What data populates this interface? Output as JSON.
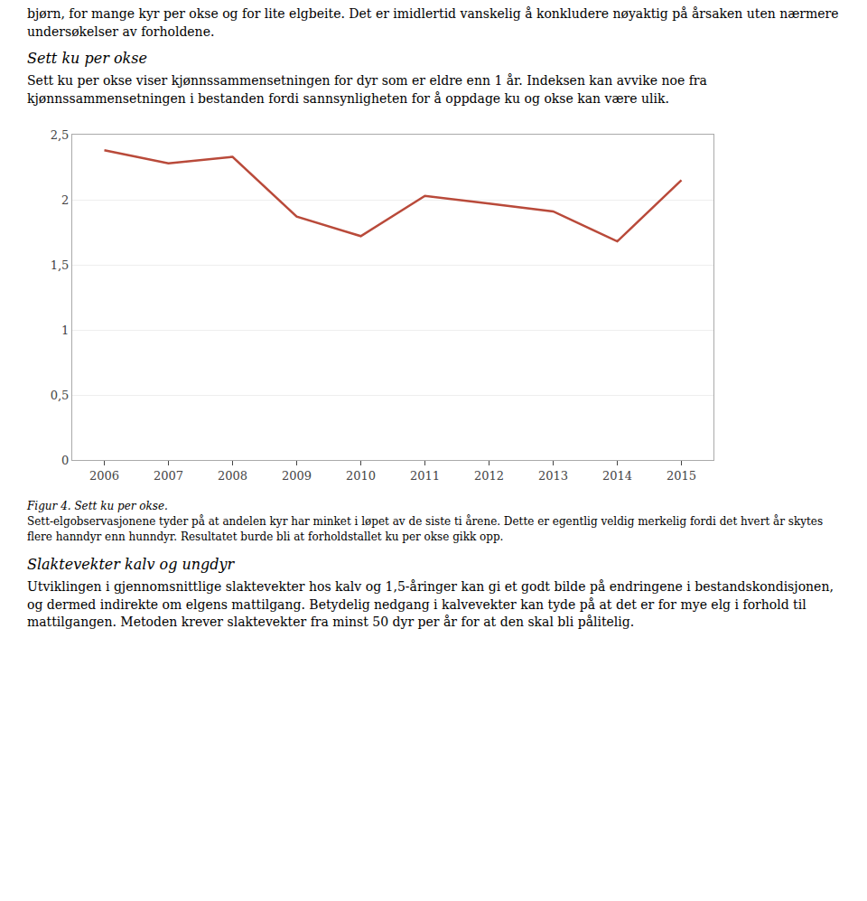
{
  "chart_data": {
    "type": "line",
    "x": [
      2006,
      2007,
      2008,
      2009,
      2010,
      2011,
      2012,
      2013,
      2014,
      2015
    ],
    "values": [
      2.38,
      2.28,
      2.33,
      1.87,
      1.72,
      2.03,
      1.97,
      1.91,
      1.68,
      2.15
    ],
    "color": "#b94a3a",
    "xlim": [
      2005.5,
      2015.5
    ],
    "xticks": [
      2006,
      2007,
      2008,
      2009,
      2010,
      2011,
      2012,
      2013,
      2014,
      2015
    ],
    "ylim": [
      0,
      2.5
    ],
    "yticks": [
      0,
      {
        "value": 0.5,
        "label": "0,5"
      },
      1,
      {
        "value": 1.5,
        "label": "1,5"
      },
      2,
      {
        "value": 2.5,
        "label": "2,5"
      }
    ],
    "grid": true,
    "annotations": [
      "bjørn, for mange kyr per okse og for lite elgbeite. Det er imidlertid vanskelig å konkludere nøyaktig på årsaken uten nærmere undersøkelser av forholdene.",
      "Sett ku per okse",
      "Sett ku per okse viser kjønnssammensetningen for dyr som er eldre enn 1 år. Indeksen kan avvike noe fra kjønnssammensetningen i bestanden fordi sannsynligheten for å oppdage ku og okse kan være ulik.",
      "Figur 4. Sett ku per okse.",
      "Sett-elgobservasjonene tyder på at andelen kyr har minket i løpet av de siste ti årene. Dette er egentlig veldig merkelig fordi det hvert år skytes flere hanndyr enn hunndyr. Resultatet burde bli at forholdstallet ku per okse gikk opp.",
      "Slaktevekter kalv og ungdyr",
      "Utviklingen i gjennomsnittlige slaktevekter hos kalv og 1,5-åringer kan gi et godt bilde på endringene i bestandskondisjonen, og dermed indirekte om elgens mattilgang. Betydelig nedgang i kalvevekter kan tyde på at det er for mye elg i forhold til mattilgangen. Metoden krever slaktevekter fra minst 50 dyr per år for at den skal bli pålitelig."
    ]
  }
}
